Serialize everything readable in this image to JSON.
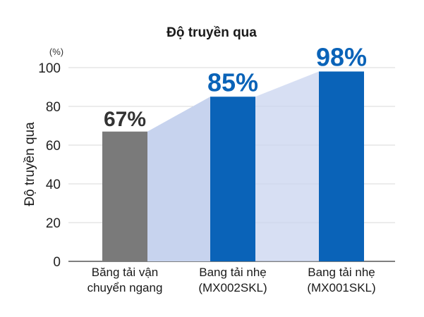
{
  "chart_data": {
    "type": "bar",
    "title": "Độ truyền qua",
    "ylabel": "Độ truyền qua",
    "unit_label": "(%)",
    "ylim": [
      0,
      100
    ],
    "yticks": [
      0,
      20,
      40,
      60,
      80,
      100
    ],
    "grid": true,
    "categories": [
      [
        "Băng tải vận",
        "chuyển ngang"
      ],
      [
        "Bang tải nhẹ",
        "(MX002SKL)"
      ],
      [
        "Bang tải nhẹ",
        "(MX001SKL)"
      ]
    ],
    "values": [
      67,
      85,
      98
    ],
    "value_labels": [
      "67%",
      "85%",
      "98%"
    ],
    "colors": {
      "bar_baseline": "#7a7a7a",
      "bar_highlight": "#0a63b8",
      "label_baseline": "#333333",
      "label_highlight": "#0a63b8",
      "band_fill": "#c7d3ee",
      "gridline": "#d9d9d9",
      "axis": "#555555"
    }
  }
}
